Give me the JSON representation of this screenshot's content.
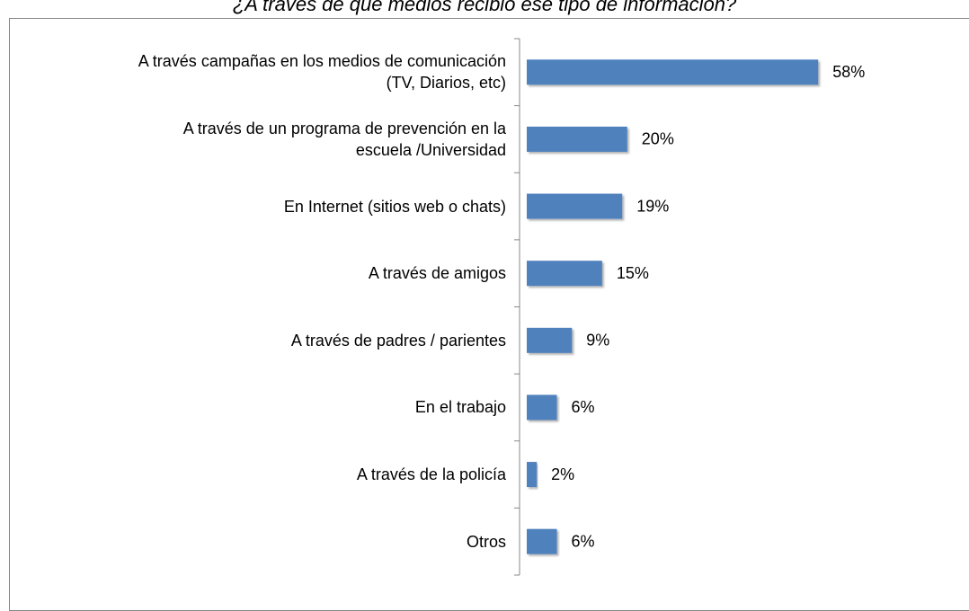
{
  "chart_data": {
    "type": "bar",
    "orientation": "horizontal",
    "title": "¿A través de qué medios recibió ese tipo de información?",
    "categories": [
      "A través campañas en los medios de comunicación\n(TV, Diarios, etc)",
      "A través de un programa de prevención en la\nescuela /Universidad",
      "En Internet (sitios web o chats)",
      "A través de amigos",
      "A través de padres / parientes",
      "En el trabajo",
      "A través de la policía",
      "Otros"
    ],
    "values": [
      58,
      20,
      19,
      15,
      9,
      6,
      2,
      6
    ],
    "value_labels": [
      "58%",
      "20%",
      "19%",
      "15%",
      "9%",
      "6%",
      "2%",
      "6%"
    ],
    "color": "#4f81bd",
    "xlim": [
      0,
      100
    ]
  }
}
